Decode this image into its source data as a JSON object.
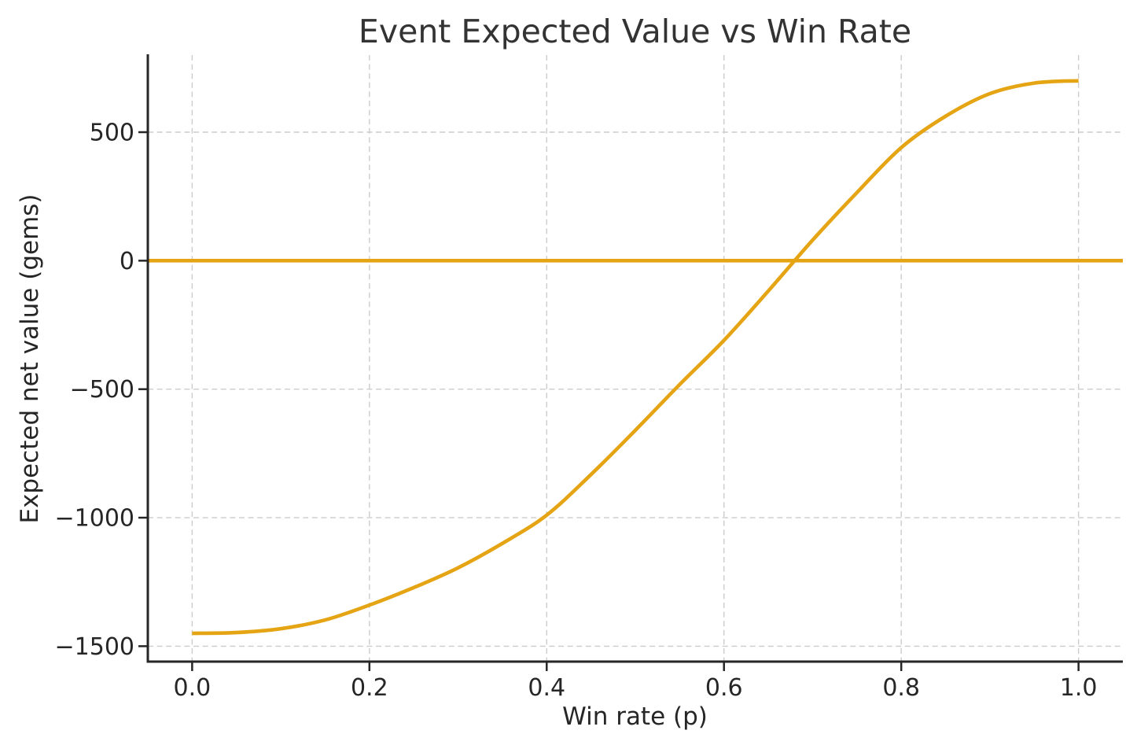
{
  "chart_data": {
    "type": "line",
    "title": "Event Expected Value vs Win Rate",
    "xlabel": "Win rate (p)",
    "ylabel": "Expected net value (gems)",
    "xlim": [
      -0.05,
      1.05
    ],
    "ylim": [
      -1560,
      800
    ],
    "xticks": [
      0.0,
      0.2,
      0.4,
      0.6,
      0.8,
      1.0
    ],
    "xtick_labels": [
      "0.0",
      "0.2",
      "0.4",
      "0.6",
      "0.8",
      "1.0"
    ],
    "yticks": [
      500,
      0,
      -500,
      -1000,
      -1500
    ],
    "ytick_labels": [
      "500",
      "0",
      "−500",
      "−1000",
      "−1500"
    ],
    "grid": true,
    "legend": "none",
    "background": "#ffffff",
    "axis_color": "#262626",
    "grid_color": "#cccccc",
    "series": [
      {
        "name": "expected-net-value-curve",
        "kind": "curve",
        "color": "#e5a413",
        "x": [
          0.0,
          0.05,
          0.1,
          0.15,
          0.2,
          0.25,
          0.3,
          0.35,
          0.4,
          0.45,
          0.5,
          0.55,
          0.6,
          0.65,
          0.7,
          0.75,
          0.8,
          0.85,
          0.9,
          0.95,
          1.0
        ],
        "y": [
          -1450,
          -1447,
          -1432,
          -1398,
          -1340,
          -1272,
          -1195,
          -1100,
          -990,
          -832,
          -660,
          -482,
          -310,
          -118,
          80,
          265,
          440,
          562,
          650,
          691,
          700
        ]
      },
      {
        "name": "break-even-line",
        "kind": "hline",
        "color": "#e5a413",
        "y": 0
      }
    ],
    "annotations": {
      "zero_crossing_p": 0.68
    }
  }
}
